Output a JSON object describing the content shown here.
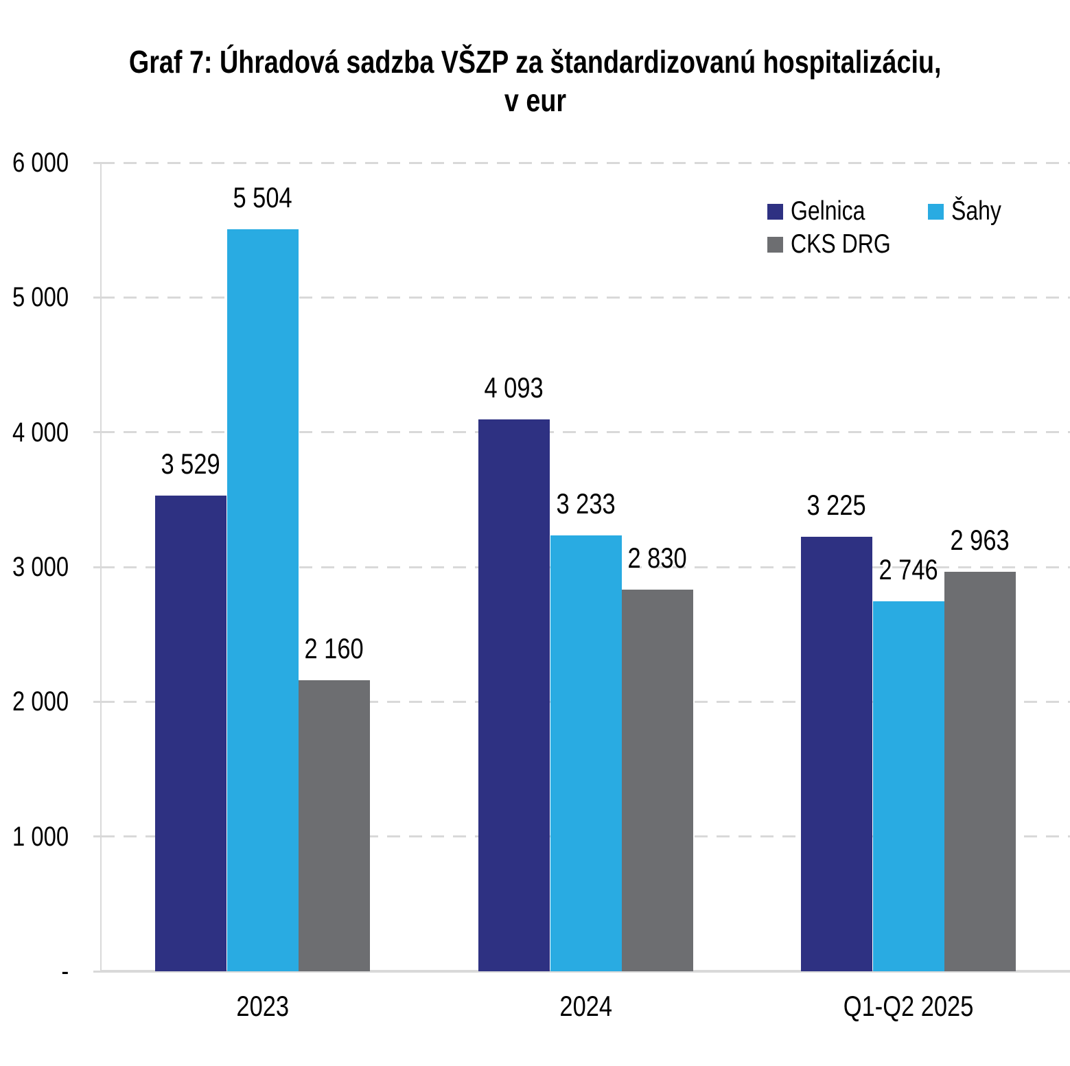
{
  "title": {
    "line1": "Graf 7: Úhradová sadzba VŠZP za štandardizovanú hospitalizáciu,",
    "line2": "v eur"
  },
  "chart_data": {
    "type": "bar",
    "title": "Graf 7: Úhradová sadzba VŠZP za štandardizovanú hospitalizáciu, v eur",
    "xlabel": "",
    "ylabel": "",
    "categories": [
      "2023",
      "2024",
      "Q1-Q2 2025"
    ],
    "series": [
      {
        "name": "Gelnica",
        "color": "#2E3182",
        "values": [
          3529,
          4093,
          3225
        ],
        "value_labels": [
          "3 529",
          "4 093",
          "3 225"
        ]
      },
      {
        "name": "Šahy",
        "color": "#29ABE2",
        "values": [
          5504,
          3233,
          2746
        ],
        "value_labels": [
          "5 504",
          "3 233",
          "2 746"
        ]
      },
      {
        "name": "CKS DRG",
        "color": "#6D6E71",
        "values": [
          2160,
          2830,
          2963
        ],
        "value_labels": [
          "2 160",
          "2 830",
          "2 963"
        ]
      }
    ],
    "ylim": [
      0,
      6000
    ],
    "ytick_interval": 1000,
    "ytick_labels": [
      "-",
      "1 000",
      "2 000",
      "3 000",
      "4 000",
      "5 000",
      "6 000"
    ],
    "grid": "horizontal-dashed",
    "gridline_color": "#D9D9D9",
    "axis_color": "#D9D9D9",
    "legend_position": "top-right",
    "legend_entries": [
      "Gelnica",
      "Šahy",
      "CKS DRG"
    ]
  }
}
